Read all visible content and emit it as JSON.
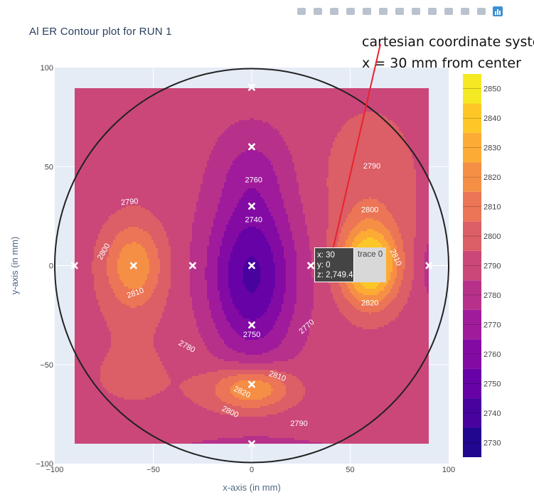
{
  "title": "Al ER Contour plot for RUN 1",
  "annotation": {
    "line1": "cartesian coordinate system",
    "line2": "x = 30 mm from center"
  },
  "modebar": {
    "icons": [
      "camera-icon",
      "zoom-icon",
      "pan-icon",
      "box-select-icon",
      "lasso-select-icon",
      "zoom-in-icon",
      "zoom-out-icon",
      "autoscale-icon",
      "reset-axes-icon",
      "spike-lines-icon",
      "hover-closest-icon",
      "hover-compare-icon",
      "plotly-logo-icon"
    ]
  },
  "hover": {
    "x_text": "x: 30",
    "y_text": "y: 0",
    "z_text": "z: 2,749.4",
    "trace_text": "trace 0"
  },
  "colors": {
    "plot_bg": "#E5ECF6",
    "grid": "#ffffff",
    "circle": "#222222",
    "arrow": "#E8232B"
  },
  "chart_data": {
    "type": "heatmap",
    "subtype": "contour",
    "title": "Al ER Contour plot for RUN 1",
    "xlabel": "x-axis (in mm)",
    "ylabel": "y-axis (in mm)",
    "xlim": [
      -100,
      100
    ],
    "ylim": [
      -100,
      100
    ],
    "x_ticks": [
      "−100",
      "−50",
      "0",
      "50",
      "100"
    ],
    "y_ticks": [
      "100",
      "50",
      "0",
      "−50",
      "−100"
    ],
    "colorbar": {
      "ticks": [
        2730,
        2740,
        2750,
        2760,
        2770,
        2780,
        2790,
        2800,
        2810,
        2820,
        2830,
        2840,
        2850
      ],
      "range": [
        2725,
        2855
      ],
      "colorscale": [
        "#0D0887",
        "#46039F",
        "#7201A8",
        "#9C179E",
        "#BD3786",
        "#D8576B",
        "#ED7953",
        "#FB9F3A",
        "#FDCA26",
        "#F0F921"
      ]
    },
    "measurement_points": [
      {
        "x": 0,
        "y": 90
      },
      {
        "x": 0,
        "y": 60
      },
      {
        "x": 0,
        "y": 30
      },
      {
        "x": 0,
        "y": 0
      },
      {
        "x": 0,
        "y": -30
      },
      {
        "x": 0,
        "y": -60
      },
      {
        "x": 0,
        "y": -90
      },
      {
        "x": -90,
        "y": 0
      },
      {
        "x": -60,
        "y": 0
      },
      {
        "x": -30,
        "y": 0
      },
      {
        "x": 30,
        "y": 0
      },
      {
        "x": 60,
        "y": 0
      },
      {
        "x": 90,
        "y": 0
      }
    ],
    "contour_labels": [
      {
        "text": "2790",
        "x": -62,
        "y": 32,
        "angle": -5
      },
      {
        "text": "2800",
        "x": -75,
        "y": 7,
        "angle": -60
      },
      {
        "text": "2810",
        "x": -59,
        "y": -14,
        "angle": -20
      },
      {
        "text": "2760",
        "x": 1,
        "y": 43,
        "angle": 0
      },
      {
        "text": "2740",
        "x": 1,
        "y": 23,
        "angle": 0
      },
      {
        "text": "2750",
        "x": 0,
        "y": -35,
        "angle": 0
      },
      {
        "text": "2770",
        "x": 28,
        "y": -31,
        "angle": -42
      },
      {
        "text": "2780",
        "x": -33,
        "y": -41,
        "angle": 28
      },
      {
        "text": "2810",
        "x": 13,
        "y": -56,
        "angle": 20
      },
      {
        "text": "2820",
        "x": -5,
        "y": -64,
        "angle": 25
      },
      {
        "text": "2800",
        "x": -11,
        "y": -74,
        "angle": 25
      },
      {
        "text": "2790",
        "x": 24,
        "y": -80,
        "angle": 0
      },
      {
        "text": "2790",
        "x": 61,
        "y": 50,
        "angle": 0
      },
      {
        "text": "2800",
        "x": 60,
        "y": 28,
        "angle": 0
      },
      {
        "text": "2810",
        "x": 73,
        "y": 4,
        "angle": 65
      },
      {
        "text": "2820",
        "x": 60,
        "y": -19,
        "angle": 0
      }
    ]
  }
}
